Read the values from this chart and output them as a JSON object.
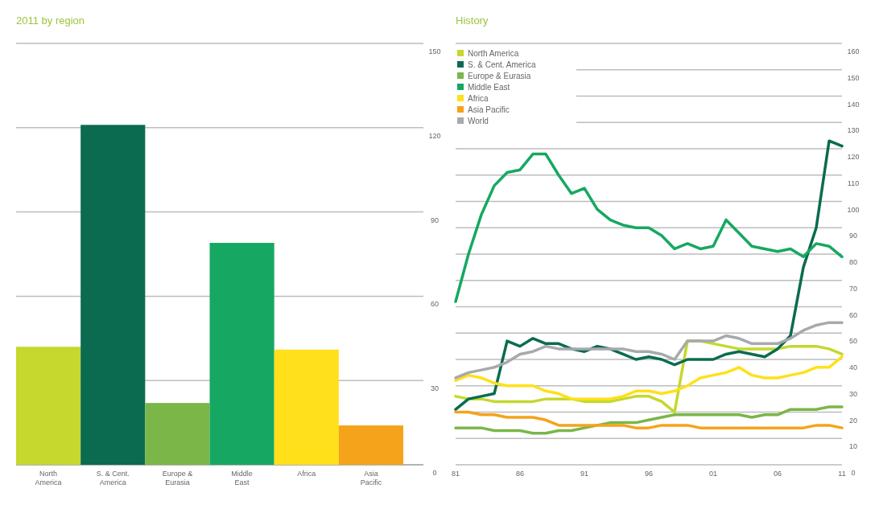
{
  "chart_data": [
    {
      "type": "bar",
      "title": "2011 by region",
      "categories": [
        "North America",
        "S. & Cent. America",
        "Europe & Eurasia",
        "Middle East",
        "Africa",
        "Asia Pacific"
      ],
      "values": [
        42,
        121,
        22,
        79,
        41,
        14
      ],
      "colors": [
        "#c4d82e",
        "#0b6b50",
        "#7ab648",
        "#16a862",
        "#ffe01b",
        "#f5a31a"
      ],
      "ylim": [
        0,
        150
      ],
      "yticks": [
        0,
        30,
        60,
        90,
        120,
        150
      ],
      "grid": "y"
    },
    {
      "type": "line",
      "title": "History",
      "x": [
        1981,
        1982,
        1983,
        1984,
        1985,
        1986,
        1987,
        1988,
        1989,
        1990,
        1991,
        1992,
        1993,
        1994,
        1995,
        1996,
        1997,
        1998,
        1999,
        2000,
        2001,
        2002,
        2003,
        2004,
        2005,
        2006,
        2007,
        2008,
        2009,
        2010,
        2011
      ],
      "series": [
        {
          "name": "North America",
          "color": "#c4d82e",
          "values": [
            26,
            25,
            25,
            24,
            24,
            24,
            24,
            25,
            25,
            25,
            24,
            24,
            24,
            25,
            26,
            26,
            24,
            20,
            47,
            47,
            46,
            45,
            44,
            44,
            44,
            44,
            45,
            45,
            45,
            44,
            42
          ]
        },
        {
          "name": "S. & Cent. America",
          "color": "#0b6b50",
          "values": [
            21,
            25,
            26,
            27,
            47,
            45,
            48,
            46,
            46,
            44,
            43,
            45,
            44,
            42,
            40,
            41,
            40,
            38,
            40,
            40,
            40,
            42,
            43,
            42,
            41,
            44,
            49,
            75,
            90,
            123,
            121
          ]
        },
        {
          "name": "Europe & Eurasia",
          "color": "#7ab648",
          "values": [
            14,
            14,
            14,
            13,
            13,
            13,
            12,
            12,
            13,
            13,
            14,
            15,
            16,
            16,
            16,
            17,
            18,
            19,
            19,
            19,
            19,
            19,
            19,
            18,
            19,
            19,
            21,
            21,
            21,
            22,
            22
          ]
        },
        {
          "name": "Middle East",
          "color": "#16a862",
          "values": [
            62,
            80,
            95,
            106,
            111,
            112,
            118,
            118,
            110,
            103,
            105,
            97,
            93,
            91,
            90,
            90,
            87,
            82,
            84,
            82,
            83,
            93,
            88,
            83,
            82,
            81,
            82,
            79,
            84,
            83,
            79
          ]
        },
        {
          "name": "Africa",
          "color": "#ffe01b",
          "values": [
            32,
            34,
            33,
            31,
            30,
            30,
            30,
            28,
            27,
            25,
            25,
            25,
            25,
            26,
            28,
            28,
            27,
            28,
            30,
            33,
            34,
            35,
            37,
            34,
            33,
            33,
            34,
            35,
            37,
            37,
            41
          ]
        },
        {
          "name": "Asia Pacific",
          "color": "#f5a31a",
          "values": [
            20,
            20,
            19,
            19,
            18,
            18,
            18,
            17,
            15,
            15,
            15,
            15,
            15,
            15,
            14,
            14,
            15,
            15,
            15,
            14,
            14,
            14,
            14,
            14,
            14,
            14,
            14,
            14,
            15,
            15,
            14
          ]
        },
        {
          "name": "World",
          "color": "#a7a9ac",
          "values": [
            33,
            35,
            36,
            37,
            39,
            42,
            43,
            45,
            44,
            44,
            44,
            44,
            44,
            44,
            43,
            43,
            42,
            40,
            47,
            47,
            47,
            49,
            48,
            46,
            46,
            46,
            48,
            51,
            53,
            54,
            54
          ]
        }
      ],
      "xlim": [
        1981,
        2011
      ],
      "xticks": [
        {
          "value": 1981,
          "label": "81"
        },
        {
          "value": 1986,
          "label": "86"
        },
        {
          "value": 1991,
          "label": "91"
        },
        {
          "value": 1996,
          "label": "96"
        },
        {
          "value": 2001,
          "label": "01"
        },
        {
          "value": 2006,
          "label": "06"
        },
        {
          "value": 2011,
          "label": "11"
        }
      ],
      "ylim": [
        0,
        160
      ],
      "yticks": [
        0,
        10,
        20,
        30,
        40,
        50,
        60,
        70,
        80,
        90,
        100,
        110,
        120,
        130,
        140,
        150,
        160
      ],
      "grid": "y",
      "legend": "top left",
      "marker": "none",
      "line_style": "solid"
    }
  ]
}
